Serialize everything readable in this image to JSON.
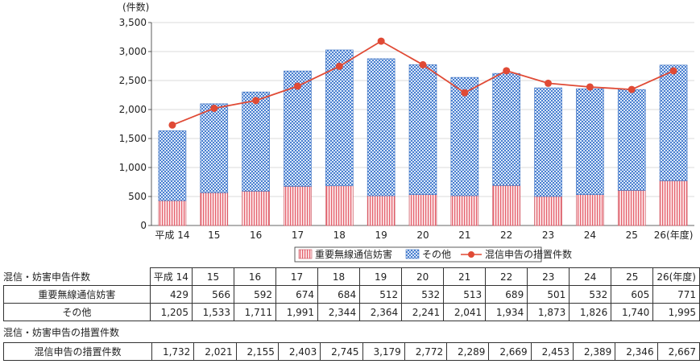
{
  "chart_data": {
    "type": "bar",
    "stacked": true,
    "unit_label": "(件数)",
    "categories": [
      "平成 14",
      "15",
      "16",
      "17",
      "18",
      "19",
      "20",
      "21",
      "22",
      "23",
      "24",
      "25",
      "26(年度)"
    ],
    "ylim": [
      0,
      3500
    ],
    "yticks": [
      "0",
      "500",
      "1,000",
      "1,500",
      "2,000",
      "2,500",
      "3,000",
      "3,500"
    ],
    "ytick_values": [
      0,
      500,
      1000,
      1500,
      2000,
      2500,
      3000,
      3500
    ],
    "grid": true,
    "legend_position": "bottom",
    "series": [
      {
        "name": "重要無線通信妨害",
        "type": "bar",
        "color": "#e8707a",
        "values": [
          429,
          566,
          592,
          674,
          684,
          512,
          532,
          513,
          689,
          501,
          532,
          605,
          771
        ]
      },
      {
        "name": "その他",
        "type": "bar",
        "color": "#5b8fd6",
        "values": [
          1205,
          1533,
          1711,
          1991,
          2344,
          2364,
          2241,
          2041,
          1934,
          1873,
          1826,
          1740,
          1995
        ]
      },
      {
        "name": "混信申告の措置件数",
        "type": "line",
        "color": "#e04a35",
        "values": [
          1732,
          2021,
          2155,
          2403,
          2745,
          3179,
          2772,
          2289,
          2669,
          2453,
          2389,
          2346,
          2667
        ]
      }
    ]
  },
  "table": {
    "header_label": "混信・妨害申告件数",
    "header_years": [
      "平成 14",
      "15",
      "16",
      "17",
      "18",
      "19",
      "20",
      "21",
      "22",
      "23",
      "24",
      "25",
      "26(年度)"
    ],
    "rows": [
      {
        "label": "重要無線通信妨害",
        "values": [
          "429",
          "566",
          "592",
          "674",
          "684",
          "512",
          "532",
          "513",
          "689",
          "501",
          "532",
          "605",
          "771"
        ]
      },
      {
        "label": "その他",
        "values": [
          "1,205",
          "1,533",
          "1,711",
          "1,991",
          "2,344",
          "2,364",
          "2,241",
          "2,041",
          "1,934",
          "1,873",
          "1,826",
          "1,740",
          "1,995"
        ]
      }
    ],
    "section2_label": "混信・妨害申告の措置件数",
    "row2": {
      "label": "混信申告の措置件数",
      "values": [
        "1,732",
        "2,021",
        "2,155",
        "2,403",
        "2,745",
        "3,179",
        "2,772",
        "2,289",
        "2,669",
        "2,453",
        "2,389",
        "2,346",
        "2,667"
      ]
    }
  }
}
